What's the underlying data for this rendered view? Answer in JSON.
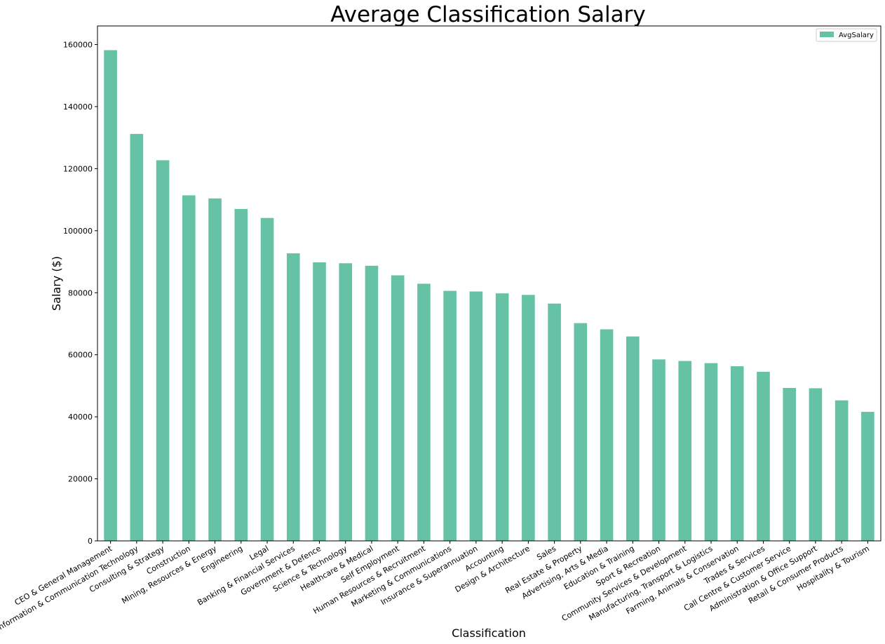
{
  "chart_data": {
    "type": "bar",
    "title": "Average Classification Salary",
    "xlabel": "Classification",
    "ylabel": "Salary ($)",
    "ylim": [
      0,
      166000
    ],
    "yticks": [
      0,
      20000,
      40000,
      60000,
      80000,
      100000,
      120000,
      140000,
      160000
    ],
    "grid": false,
    "legend_position": "top-right",
    "bar_color": "#66c2a5",
    "categories": [
      "CEO & General Management",
      "Information & Communication Technology",
      "Consulting & Strategy",
      "Construction",
      "Mining, Resources & Energy",
      "Engineering",
      "Legal",
      "Banking & Financial Services",
      "Government & Defence",
      "Science & Technology",
      "Healthcare & Medical",
      "Self Employment",
      "Human Resources & Recruitment",
      "Marketing & Communications",
      "Insurance & Superannuation",
      "Accounting",
      "Design & Architecture",
      "Sales",
      "Real Estate & Property",
      "Advertising, Arts & Media",
      "Education & Training",
      "Sport & Recreation",
      "Community Services & Development",
      "Manufacturing, Transport & Logistics",
      "Farming, Animals & Conservation",
      "Trades & Services",
      "Call Centre & Customer Service",
      "Administration & Office Support",
      "Retail & Consumer Products",
      "Hospitality & Tourism"
    ],
    "series": [
      {
        "name": "AvgSalary",
        "values": [
          158200,
          131200,
          122700,
          111400,
          110400,
          107000,
          104100,
          92700,
          89800,
          89500,
          88700,
          85600,
          82900,
          80600,
          80400,
          79800,
          79300,
          76500,
          70200,
          68200,
          65900,
          58500,
          58000,
          57300,
          56300,
          54500,
          49300,
          49200,
          45300,
          41600
        ]
      }
    ]
  }
}
